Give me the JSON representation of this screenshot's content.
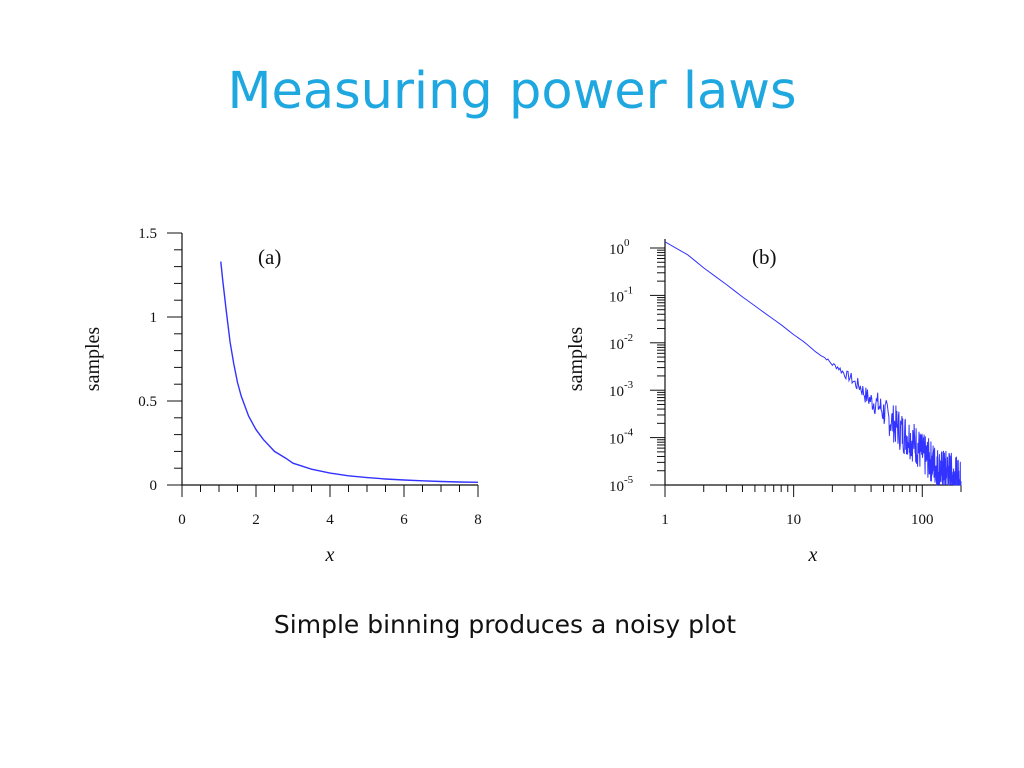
{
  "slide": {
    "title": "Measuring power laws",
    "caption": "Simple binning  produces a noisy plot",
    "title_color": "#1fa7e0"
  },
  "chart_data": [
    {
      "type": "line",
      "panel_label": "(a)",
      "xlabel": "x",
      "ylabel": "samples",
      "xlim": [
        0,
        8
      ],
      "ylim": [
        0,
        1.5
      ],
      "x_ticks": [
        0,
        2,
        4,
        6,
        8
      ],
      "x_tick_labels": [
        "0",
        "2",
        "4",
        "6",
        "8"
      ],
      "y_ticks": [
        0,
        0.5,
        1,
        1.5
      ],
      "y_tick_labels": [
        "0",
        "0.5",
        "1",
        "1.5"
      ],
      "series": [
        {
          "color": "#3333ff",
          "x": [
            1.05,
            1.1,
            1.2,
            1.3,
            1.4,
            1.5,
            1.6,
            1.8,
            2.0,
            2.2,
            2.5,
            2.8,
            3.0,
            3.5,
            4.0,
            4.5,
            5.0,
            5.5,
            6.0,
            6.5,
            7.0,
            7.5,
            8.0
          ],
          "y": [
            1.33,
            1.22,
            1.03,
            0.85,
            0.72,
            0.61,
            0.53,
            0.41,
            0.33,
            0.27,
            0.2,
            0.16,
            0.13,
            0.094,
            0.071,
            0.055,
            0.044,
            0.036,
            0.03,
            0.025,
            0.021,
            0.018,
            0.016
          ]
        }
      ]
    },
    {
      "type": "line",
      "panel_label": "(b)",
      "xlabel": "x",
      "ylabel": "samples",
      "x_scale": "log",
      "y_scale": "log",
      "xlim": [
        1,
        200
      ],
      "ylim": [
        1e-05,
        1.5
      ],
      "x_tick_labels": [
        {
          "value": 1,
          "base": "1",
          "exp": ""
        },
        {
          "value": 10,
          "base": "10",
          "exp": ""
        },
        {
          "value": 100,
          "base": "100",
          "exp": ""
        }
      ],
      "y_tick_labels": [
        {
          "value": 1,
          "base": "10",
          "exp": "0"
        },
        {
          "value": 0.1,
          "base": "10",
          "exp": "-1"
        },
        {
          "value": 0.01,
          "base": "10",
          "exp": "-2"
        },
        {
          "value": 0.001,
          "base": "10",
          "exp": "-3"
        },
        {
          "value": 0.0001,
          "base": "10",
          "exp": "-4"
        },
        {
          "value": 1e-05,
          "base": "10",
          "exp": "-5"
        }
      ],
      "series": [
        {
          "color": "#3333ff",
          "x": [
            1.0,
            1.5,
            2,
            3,
            4,
            5,
            6,
            8,
            10,
            12,
            15,
            18,
            20,
            22,
            25,
            28,
            30,
            33,
            36,
            40,
            45,
            50,
            55,
            60,
            70,
            80,
            90,
            100,
            120,
            140,
            160,
            180,
            200
          ],
          "y": [
            1.35,
            0.72,
            0.38,
            0.17,
            0.093,
            0.06,
            0.042,
            0.024,
            0.0149,
            0.0105,
            0.0063,
            0.0046,
            0.0035,
            0.0031,
            0.0022,
            0.0018,
            0.0014,
            0.0012,
            0.0008,
            0.0006,
            0.0005,
            0.00035,
            0.00025,
            0.0002,
            0.00013,
            0.0001,
            7e-05,
            4.5e-05,
            3e-05,
            2e-05,
            2e-05,
            1.5e-05,
            1.2e-05
          ]
        }
      ]
    }
  ]
}
